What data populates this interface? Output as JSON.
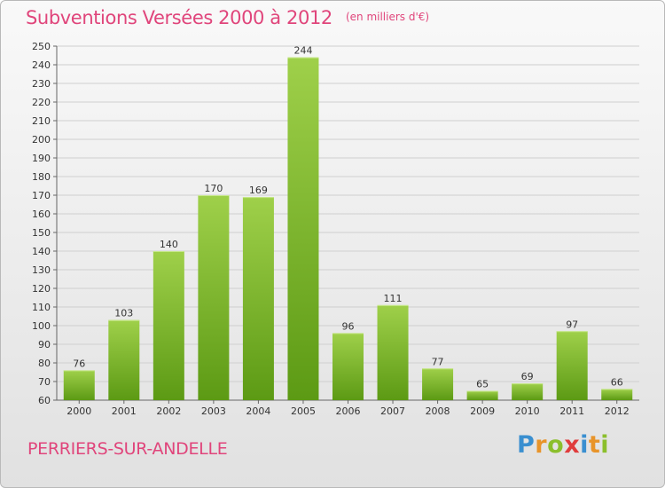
{
  "title": "Subventions Versées 2000 à 2012",
  "unit": "(en milliers d'€)",
  "commune": "PERRIERS-SUR-ANDELLE",
  "logo": {
    "text": "Proxiti",
    "letter_colors": [
      "#3a8fd0",
      "#e8942a",
      "#8bbf2c",
      "#e03c3c",
      "#3a8fd0",
      "#e8942a",
      "#8bbf2c"
    ]
  },
  "colors": {
    "title": "#e0457b",
    "bar_top": "#9fd04a",
    "bar_bottom": "#5c9a14",
    "grid": "#cfcfcf"
  },
  "chart_data": {
    "type": "bar",
    "categories": [
      "2000",
      "2001",
      "2002",
      "2003",
      "2004",
      "2005",
      "2006",
      "2007",
      "2008",
      "2009",
      "2010",
      "2011",
      "2012"
    ],
    "values": [
      76,
      103,
      140,
      170,
      169,
      244,
      96,
      111,
      77,
      65,
      69,
      97,
      66
    ],
    "data_labels": [
      "76",
      "103",
      "140",
      "170",
      "169",
      "244",
      "96",
      "111",
      "77",
      "65",
      "69",
      "97",
      "66"
    ],
    "y_ticks": [
      "60",
      "70",
      "80",
      "90",
      "100",
      "110",
      "120",
      "130",
      "140",
      "150",
      "160",
      "170",
      "180",
      "190",
      "200",
      "210",
      "220",
      "230",
      "240",
      "250"
    ],
    "ylim": [
      60,
      250
    ],
    "ytick_step": 10,
    "grid": true,
    "xlabel": "",
    "ylabel": ""
  }
}
